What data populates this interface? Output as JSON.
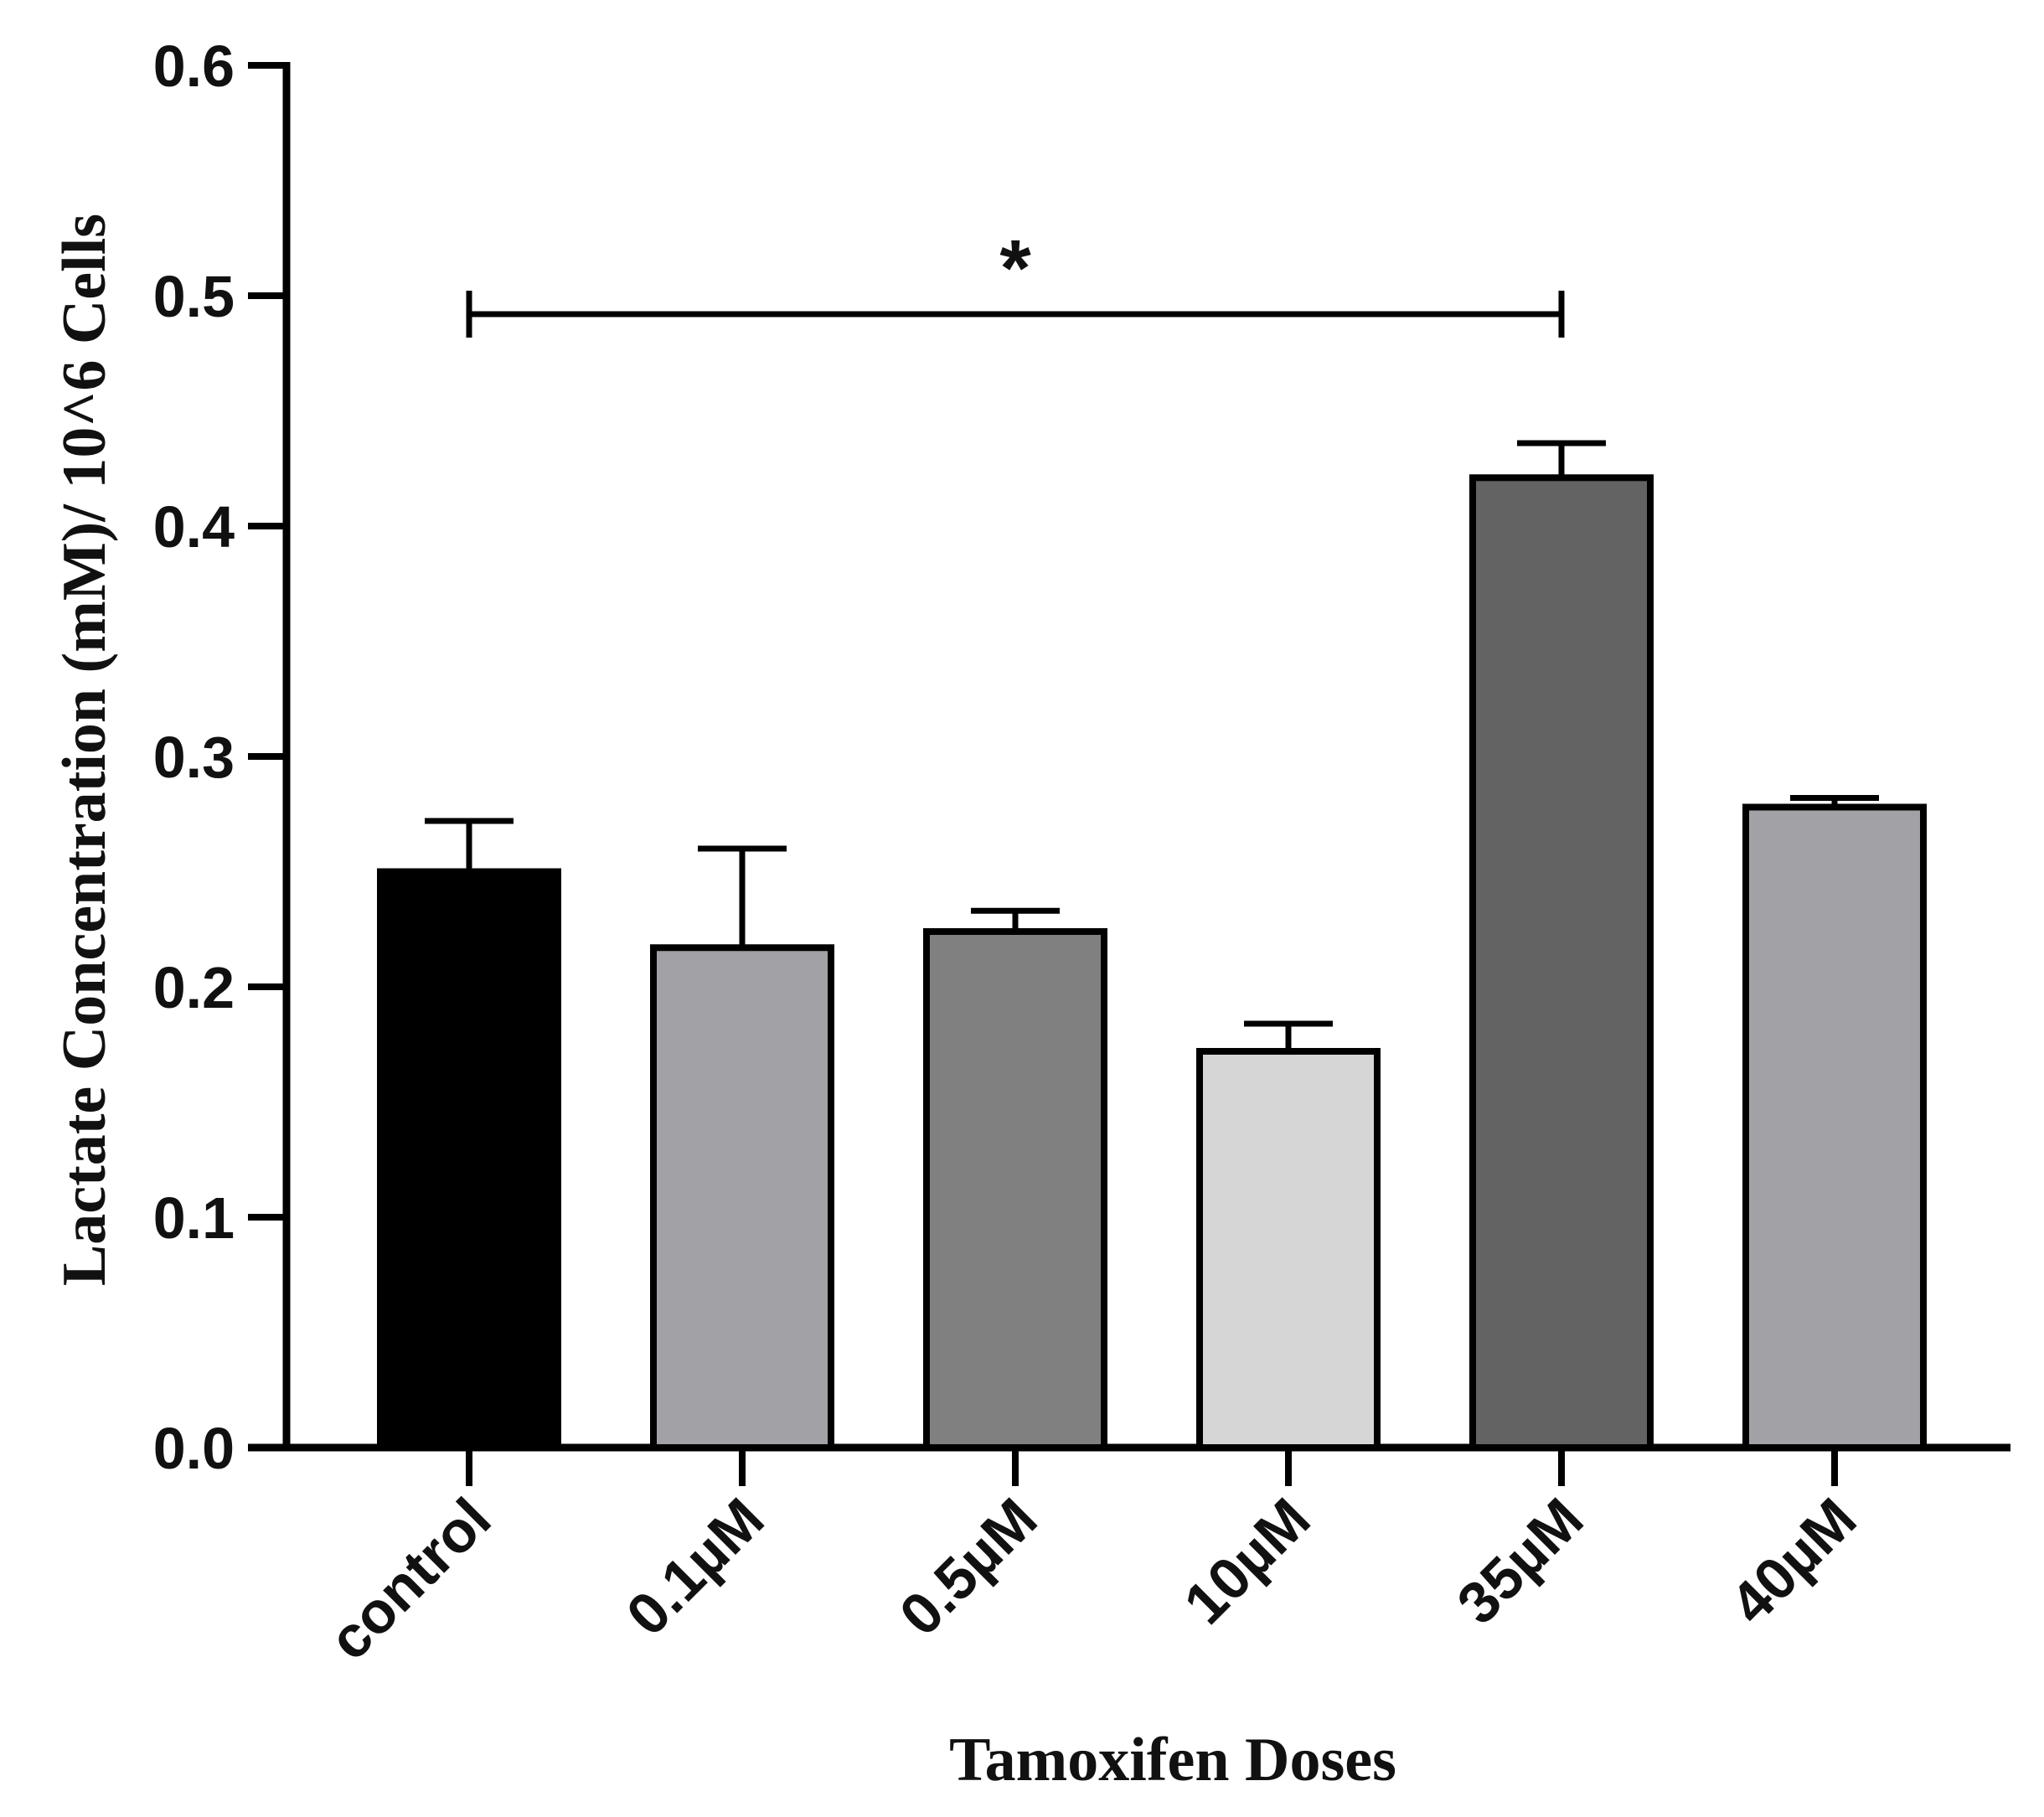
{
  "chart_data": {
    "type": "bar",
    "title": "",
    "xlabel": "Tamoxifen Doses",
    "ylabel": "Lactate Concentration (mM)/ 10^6 Cells",
    "ylim": [
      0,
      0.6
    ],
    "yticks": [
      0.0,
      0.1,
      0.2,
      0.3,
      0.4,
      0.5,
      0.6
    ],
    "ytick_labels": [
      "0.0",
      "0.1",
      "0.2",
      "0.3",
      "0.4",
      "0.5",
      "0.6"
    ],
    "categories": [
      "control",
      "0.1µM",
      "0.5µM",
      "10µM",
      "35µM",
      "40µM"
    ],
    "values": [
      0.25,
      0.217,
      0.224,
      0.172,
      0.421,
      0.278
    ],
    "errors": [
      0.022,
      0.043,
      0.009,
      0.012,
      0.015,
      0.004
    ],
    "colors": [
      "#000000",
      "#a2a1a6",
      "#808080",
      "#d6d6d6",
      "#636363",
      "#a2a1a6"
    ],
    "significance": {
      "from": "control",
      "to": "35µM",
      "y": 0.492,
      "label": "*"
    },
    "grid": false,
    "legend": "none"
  }
}
